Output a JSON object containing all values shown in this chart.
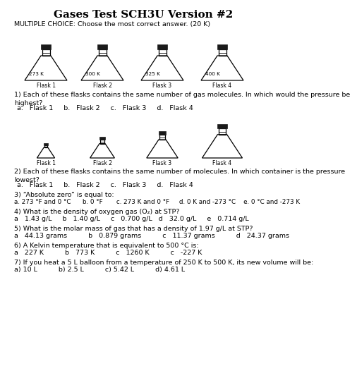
{
  "title": "Gases Test SCH3U Version #2",
  "subtitle": "MULTIPLE CHOICE: Choose the most correct answer. (20 K)",
  "flask_row1": {
    "labels": [
      "Flask 1",
      "Flask 2",
      "Flask 3",
      "Flask 4"
    ],
    "temps": [
      "273 K",
      "300 K",
      "325 K",
      "400 K"
    ]
  },
  "flask_row2": {
    "labels": [
      "Flask 1",
      "Flask 2",
      "Flask 3",
      "Flask 4"
    ],
    "scales": [
      0.42,
      0.58,
      0.74,
      0.95
    ]
  },
  "questions": [
    {
      "text": "1) Each of these flasks contains the same number of gas molecules. In which would the pressure be\nhighest?",
      "answers": "a.   Flask 1     b.   Flask 2     c.   Flask 3     d.   Flask 4"
    },
    {
      "text": "2) Each of these flasks contains the same number of molecules. In which container is the pressure\nlowest?",
      "answers": "a.   Flask 1     b.   Flask 2     c.   Flask 3     d.   Flask 4"
    },
    {
      "text": "3) “Absolute zero” is equal to:",
      "answers": "a. 273 °F and 0 °C      b. 0 °F       c. 273 K and 0 °F     d. 0 K and -273 °C    e. 0 °C and -273 K"
    },
    {
      "text": "4) What is the density of oxygen gas (O₂) at STP?",
      "answers": "a   1.43 g/L     b   1.40 g/L     c   0.700 g/L   d   32.0 g/L     e   0.714 g/L"
    },
    {
      "text": "5) What is the molar mass of gas that has a density of 1.97 g/L at STP?",
      "answers": "a   44.13 grams          b   0.879 grams          c   11.37 grams          d   24.37 grams"
    },
    {
      "text": "6) A Kelvin temperature that is equivalent to 500 °C is:",
      "answers": "a   227 K          b   773 K          c   1260 K          c   -227 K"
    },
    {
      "text": "7) If you heat a 5 L balloon from a temperature of 250 K to 500 K, its new volume will be:",
      "answers": "a) 10 L          b) 2.5 L          c) 5.42 L          d) 4.61 L"
    }
  ],
  "bg_color": "#ffffff",
  "text_color": "#000000",
  "title_fontsize": 11,
  "body_fontsize": 6.8,
  "small_fontsize": 6.0
}
